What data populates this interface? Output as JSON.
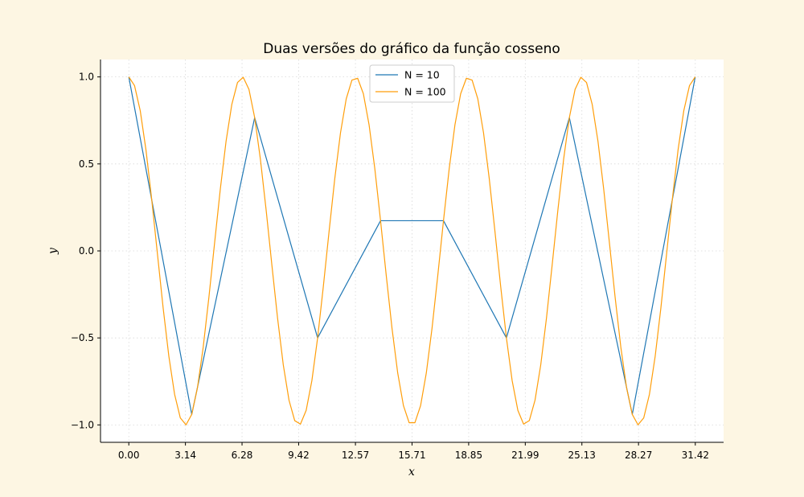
{
  "chart_data": {
    "type": "line",
    "title": "Duas versões do gráfico da função cosseno",
    "xlabel": "x",
    "ylabel": "y",
    "xlim": [
      -1.57,
      32.99
    ],
    "ylim": [
      -1.1,
      1.1
    ],
    "grid": true,
    "legend_placement": "top-center",
    "x_ticks": [
      0,
      3.14,
      6.28,
      9.42,
      12.57,
      15.71,
      18.85,
      21.99,
      25.13,
      28.27,
      31.42
    ],
    "x_tick_labels": [
      "0.00",
      "3.14",
      "6.28",
      "9.42",
      "12.57",
      "15.71",
      "18.85",
      "21.99",
      "25.13",
      "28.27",
      "31.42"
    ],
    "y_ticks": [
      -1.0,
      -0.5,
      0.0,
      0.5,
      1.0
    ],
    "y_tick_labels": [
      "−1.0",
      "−0.5",
      "0.0",
      "0.5",
      "1.0"
    ],
    "x_range": [
      0,
      31.4159
    ],
    "series": [
      {
        "name": "N = 10",
        "n_points": 10,
        "function": "cos",
        "color": "#1f77b4"
      },
      {
        "name": "N = 100",
        "n_points": 100,
        "function": "cos",
        "color": "#ff9e0a"
      }
    ],
    "background": "#fdf6e3",
    "plot_background": "#ffffff"
  }
}
